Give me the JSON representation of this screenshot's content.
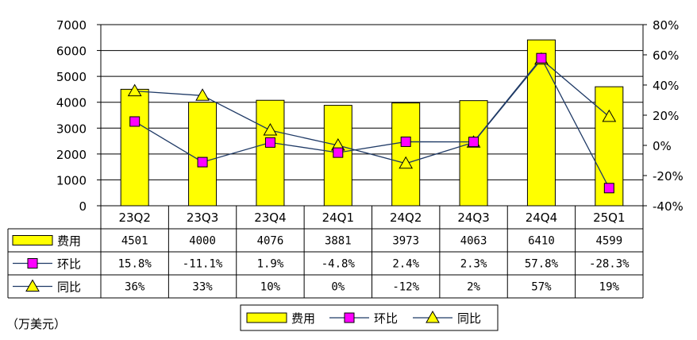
{
  "chart_data": {
    "type": "bar",
    "categories": [
      "23Q2",
      "23Q3",
      "23Q4",
      "24Q1",
      "24Q2",
      "24Q3",
      "24Q4",
      "25Q1"
    ],
    "unit_label": "（万美元）",
    "y_left": {
      "min": 0,
      "max": 7000,
      "step": 1000,
      "ticks": [
        "0",
        "1000",
        "2000",
        "3000",
        "4000",
        "5000",
        "6000",
        "7000"
      ]
    },
    "y_right": {
      "min": -40,
      "max": 80,
      "step": 20,
      "ticks": [
        "-40%",
        "-20%",
        "0%",
        "20%",
        "40%",
        "60%",
        "80%"
      ]
    },
    "grid": true,
    "series": [
      {
        "name": "费用",
        "kind": "bar",
        "axis": "left",
        "color": "#FFFF00",
        "values": [
          4501,
          4000,
          4076,
          3881,
          3973,
          4063,
          6410,
          4599
        ],
        "labels": [
          "4501",
          "4000",
          "4076",
          "3881",
          "3973",
          "4063",
          "6410",
          "4599"
        ]
      },
      {
        "name": "环比",
        "kind": "line",
        "axis": "right",
        "marker": "square",
        "color": "#FF00FF",
        "values": [
          15.8,
          -11.1,
          1.9,
          -4.8,
          2.4,
          2.3,
          57.8,
          -28.3
        ],
        "labels": [
          "15.8%",
          "-11.1%",
          "1.9%",
          "-4.8%",
          "2.4%",
          "2.3%",
          "57.8%",
          "-28.3%"
        ]
      },
      {
        "name": "同比",
        "kind": "line",
        "axis": "right",
        "marker": "triangle",
        "color": "#FFFF00",
        "values": [
          36,
          33,
          10,
          0,
          -12,
          2,
          57,
          19
        ],
        "labels": [
          "36%",
          "33%",
          "10%",
          "0%",
          "-12%",
          "2%",
          "57%",
          "19%"
        ]
      }
    ],
    "line_color": "#1F3A66",
    "legend": {
      "position": "bottom",
      "items": [
        "费用",
        "环比",
        "同比"
      ]
    }
  }
}
